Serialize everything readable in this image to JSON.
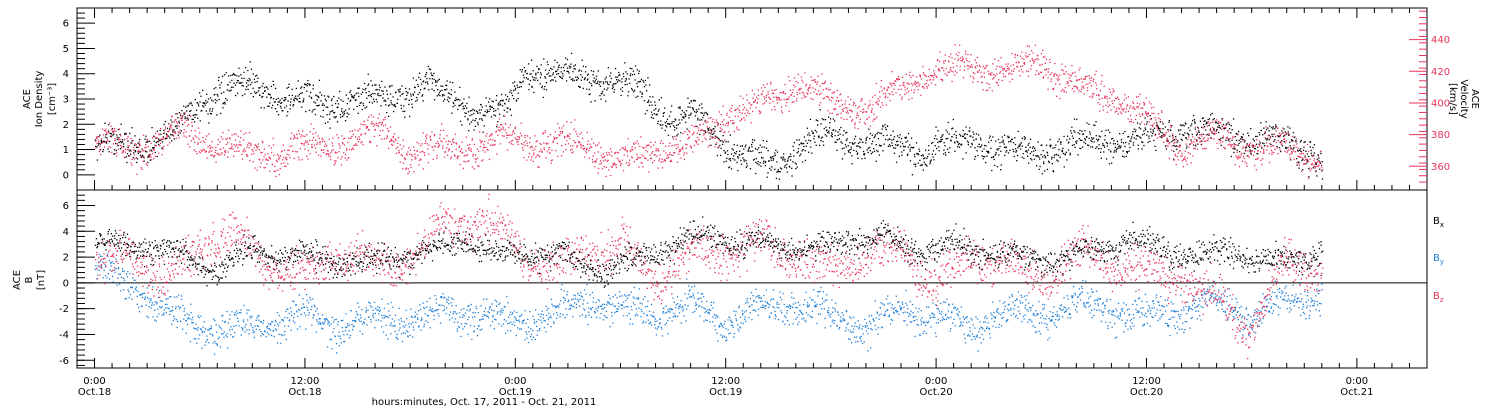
{
  "chart_data": [
    {
      "type": "scatter",
      "panel": "top",
      "ylabel_left": [
        "ACE",
        "Ion Density",
        "[cm⁻³]"
      ],
      "ylabel_right": [
        "ACE",
        "Velocity",
        "[km/s]"
      ],
      "ylim_left": [
        -0.6,
        6.6
      ],
      "ylim_right": [
        345,
        460
      ],
      "yticks_left": [
        "0",
        "1",
        "2",
        "3",
        "4",
        "5",
        "6"
      ],
      "yticks_right": [
        "360",
        "380",
        "400",
        "420",
        "440"
      ],
      "colors": {
        "density": "#000000",
        "velocity": "#e8345c"
      },
      "density_trend": [
        [
          0.0,
          1.2
        ],
        [
          4.0,
          1.3
        ],
        [
          6.0,
          3.0
        ],
        [
          9.0,
          3.6
        ],
        [
          11.0,
          3.0
        ],
        [
          13.0,
          2.8
        ],
        [
          16.0,
          3.0
        ],
        [
          19.0,
          3.5
        ],
        [
          22.0,
          2.4
        ],
        [
          23.5,
          2.5
        ],
        [
          24.5,
          4.1
        ],
        [
          28.0,
          3.9
        ],
        [
          31.0,
          3.5
        ],
        [
          33.0,
          2.0
        ],
        [
          34.0,
          2.5
        ],
        [
          36.0,
          1.2
        ],
        [
          37.5,
          0.6
        ],
        [
          39.0,
          0.5
        ],
        [
          41.0,
          1.6
        ],
        [
          44.0,
          1.3
        ],
        [
          47.0,
          1.0
        ],
        [
          50.0,
          1.4
        ],
        [
          53.0,
          0.8
        ],
        [
          56.0,
          1.3
        ],
        [
          59.0,
          1.4
        ],
        [
          62.0,
          1.7
        ],
        [
          65.0,
          1.6
        ],
        [
          68.0,
          1.3
        ],
        [
          70.0,
          0.8
        ]
      ],
      "velocity_trend": [
        [
          0.0,
          375
        ],
        [
          3.0,
          372
        ],
        [
          5.0,
          385
        ],
        [
          7.0,
          372
        ],
        [
          9.0,
          368
        ],
        [
          11.0,
          370
        ],
        [
          13.0,
          372
        ],
        [
          15.0,
          378
        ],
        [
          16.5,
          384
        ],
        [
          18.0,
          368
        ],
        [
          20.0,
          372
        ],
        [
          22.0,
          372
        ],
        [
          24.0,
          378
        ],
        [
          26.0,
          372
        ],
        [
          28.0,
          375
        ],
        [
          30.0,
          362
        ],
        [
          32.0,
          372
        ],
        [
          34.0,
          372
        ],
        [
          36.0,
          392
        ],
        [
          38.0,
          400
        ],
        [
          40.0,
          412
        ],
        [
          42.0,
          402
        ],
        [
          44.0,
          395
        ],
        [
          46.0,
          410
        ],
        [
          48.0,
          420
        ],
        [
          50.0,
          425
        ],
        [
          52.0,
          418
        ],
        [
          54.0,
          428
        ],
        [
          56.0,
          410
        ],
        [
          58.0,
          405
        ],
        [
          60.0,
          390
        ],
        [
          62.0,
          372
        ],
        [
          64.0,
          380
        ],
        [
          66.0,
          370
        ],
        [
          68.0,
          372
        ],
        [
          70.0,
          365
        ]
      ]
    },
    {
      "type": "scatter",
      "panel": "bottom",
      "ylabel_left": [
        "ACE",
        "B",
        "[nT]"
      ],
      "ylim": [
        -6.6,
        7.2
      ],
      "yticks": [
        "-6",
        "-4",
        "-2",
        "0",
        "2",
        "4",
        "6"
      ],
      "legend": [
        {
          "label": "B",
          "sub": "x",
          "color": "#000000"
        },
        {
          "label": "B",
          "sub": "y",
          "color": "#1e7fd8"
        },
        {
          "label": "B",
          "sub": "z",
          "color": "#e8345c"
        }
      ],
      "zero_line": true,
      "bx_trend": [
        [
          0.0,
          3.0
        ],
        [
          3.0,
          3.0
        ],
        [
          5.0,
          2.0
        ],
        [
          7.0,
          1.0
        ],
        [
          9.0,
          2.5
        ],
        [
          11.0,
          2.0
        ],
        [
          13.0,
          2.0
        ],
        [
          15.0,
          1.5
        ],
        [
          17.0,
          2.0
        ],
        [
          19.0,
          2.5
        ],
        [
          21.0,
          3.5
        ],
        [
          23.0,
          2.0
        ],
        [
          25.0,
          2.5
        ],
        [
          27.0,
          2.0
        ],
        [
          29.0,
          1.0
        ],
        [
          31.0,
          2.0
        ],
        [
          33.0,
          3.0
        ],
        [
          35.0,
          3.8
        ],
        [
          37.0,
          3.0
        ],
        [
          39.0,
          3.0
        ],
        [
          41.0,
          2.5
        ],
        [
          43.0,
          3.5
        ],
        [
          45.0,
          3.5
        ],
        [
          47.0,
          2.5
        ],
        [
          49.0,
          3.0
        ],
        [
          51.0,
          2.5
        ],
        [
          53.0,
          2.0
        ],
        [
          55.0,
          2.0
        ],
        [
          57.0,
          2.5
        ],
        [
          59.0,
          3.5
        ],
        [
          61.0,
          2.5
        ],
        [
          63.0,
          2.0
        ],
        [
          65.0,
          2.5
        ],
        [
          67.0,
          1.5
        ],
        [
          69.0,
          2.0
        ],
        [
          70.0,
          2.5
        ]
      ],
      "by_trend": [
        [
          0.0,
          1.5
        ],
        [
          2.0,
          0.0
        ],
        [
          4.0,
          -2.0
        ],
        [
          6.0,
          -3.5
        ],
        [
          8.0,
          -3.5
        ],
        [
          10.0,
          -3.0
        ],
        [
          12.0,
          -2.5
        ],
        [
          14.0,
          -3.5
        ],
        [
          16.0,
          -2.5
        ],
        [
          18.0,
          -3.0
        ],
        [
          20.0,
          -2.0
        ],
        [
          22.0,
          -2.5
        ],
        [
          24.0,
          -3.0
        ],
        [
          26.0,
          -2.5
        ],
        [
          28.0,
          -1.5
        ],
        [
          30.0,
          -2.0
        ],
        [
          32.0,
          -2.5
        ],
        [
          34.0,
          -1.5
        ],
        [
          36.0,
          -3.0
        ],
        [
          38.0,
          -2.0
        ],
        [
          40.0,
          -1.5
        ],
        [
          42.0,
          -2.5
        ],
        [
          44.0,
          -3.5
        ],
        [
          46.0,
          -2.0
        ],
        [
          48.0,
          -2.5
        ],
        [
          50.0,
          -3.5
        ],
        [
          52.0,
          -2.0
        ],
        [
          54.0,
          -2.5
        ],
        [
          56.0,
          -1.5
        ],
        [
          58.0,
          -2.0
        ],
        [
          60.0,
          -2.5
        ],
        [
          62.0,
          -2.0
        ],
        [
          64.0,
          -1.5
        ],
        [
          66.0,
          -2.5
        ],
        [
          68.0,
          -1.5
        ],
        [
          70.0,
          -0.5
        ]
      ],
      "bz_trend": [
        [
          0.0,
          1.0
        ],
        [
          2.0,
          2.5
        ],
        [
          4.0,
          0.0
        ],
        [
          6.0,
          3.0
        ],
        [
          8.0,
          3.5
        ],
        [
          10.0,
          1.5
        ],
        [
          12.0,
          0.5
        ],
        [
          14.0,
          2.5
        ],
        [
          16.0,
          1.5
        ],
        [
          18.0,
          2.0
        ],
        [
          20.0,
          4.5
        ],
        [
          22.0,
          5.0
        ],
        [
          24.0,
          3.0
        ],
        [
          26.0,
          1.0
        ],
        [
          28.0,
          2.5
        ],
        [
          30.0,
          3.0
        ],
        [
          32.0,
          0.5
        ],
        [
          34.0,
          2.0
        ],
        [
          36.0,
          2.5
        ],
        [
          38.0,
          3.0
        ],
        [
          40.0,
          2.0
        ],
        [
          42.0,
          1.0
        ],
        [
          44.0,
          2.5
        ],
        [
          46.0,
          2.5
        ],
        [
          48.0,
          0.0
        ],
        [
          50.0,
          2.0
        ],
        [
          52.0,
          1.5
        ],
        [
          54.0,
          0.0
        ],
        [
          56.0,
          2.5
        ],
        [
          58.0,
          1.5
        ],
        [
          60.0,
          1.0
        ],
        [
          62.0,
          0.5
        ],
        [
          64.0,
          -1.5
        ],
        [
          66.0,
          -3.5
        ],
        [
          68.0,
          2.0
        ],
        [
          70.0,
          1.0
        ]
      ]
    }
  ],
  "x_axis": {
    "range_hours": [
      -1.0,
      76.0
    ],
    "ticks": [
      {
        "hour": 0,
        "time": "0:00",
        "date": "Oct.18"
      },
      {
        "hour": 12,
        "time": "12:00",
        "date": "Oct.18"
      },
      {
        "hour": 24,
        "time": "0:00",
        "date": "Oct.19"
      },
      {
        "hour": 36,
        "time": "12:00",
        "date": "Oct.19"
      },
      {
        "hour": 48,
        "time": "0:00",
        "date": "Oct.20"
      },
      {
        "hour": 60,
        "time": "12:00",
        "date": "Oct.20"
      },
      {
        "hour": 72,
        "time": "0:00",
        "date": "Oct.21"
      }
    ],
    "label": "hours:minutes, Oct. 17, 2011 - Oct. 21, 2011"
  }
}
